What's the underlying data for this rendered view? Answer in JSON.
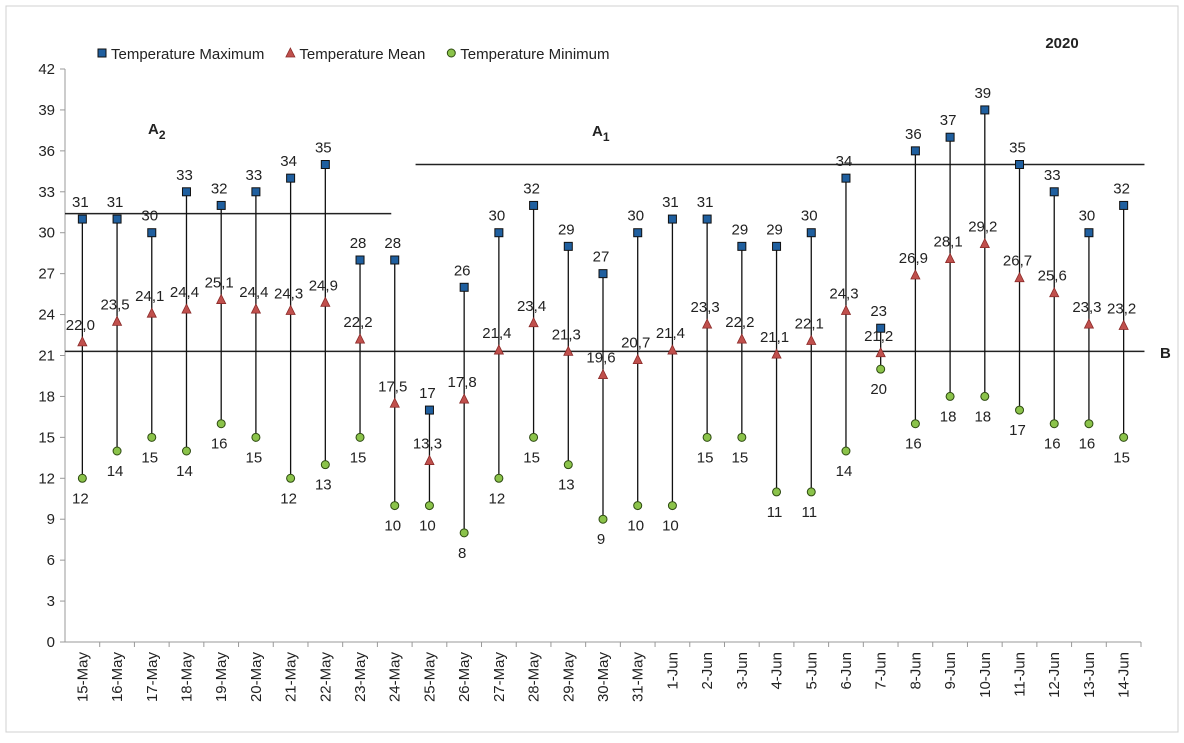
{
  "chart_data": {
    "type": "range-dot",
    "annotation_year": "2020",
    "categories": [
      "15-May",
      "16-May",
      "17-May",
      "18-May",
      "19-May",
      "20-May",
      "21-May",
      "22-May",
      "23-May",
      "24-May",
      "25-May",
      "26-May",
      "27-May",
      "28-May",
      "29-May",
      "30-May",
      "31-May",
      "1-Jun",
      "2-Jun",
      "3-Jun",
      "4-Jun",
      "5-Jun",
      "6-Jun",
      "7-Jun",
      "8-Jun",
      "9-Jun",
      "10-Jun",
      "11-Jun",
      "12-Jun",
      "13-Jun",
      "14-Jun"
    ],
    "series": [
      {
        "name": "Temperature Maximum",
        "color": "#1f5f9f",
        "marker": "square",
        "values": [
          31,
          31,
          30,
          33,
          32,
          33,
          34,
          35,
          28,
          28,
          17,
          26,
          30,
          32,
          29,
          27,
          30,
          31,
          31,
          29,
          29,
          30,
          34,
          23,
          36,
          37,
          39,
          35,
          33,
          30,
          32
        ]
      },
      {
        "name": "Temperature Mean",
        "color": "#c0504d",
        "marker": "triangle",
        "values": [
          22.0,
          23.5,
          24.1,
          24.4,
          25.1,
          24.4,
          24.3,
          24.9,
          22.2,
          17.5,
          13.3,
          17.8,
          21.4,
          23.4,
          21.3,
          19.6,
          20.7,
          21.4,
          23.3,
          22.2,
          21.1,
          22.1,
          24.3,
          21.2,
          26.9,
          28.1,
          29.2,
          26.7,
          25.6,
          23.3,
          23.2
        ],
        "value_labels": [
          "22,0",
          "23,5",
          "24,1",
          "24,4",
          "25,1",
          "24,4",
          "24,3",
          "24,9",
          "22,2",
          "17,5",
          "13,3",
          "17,8",
          "21,4",
          "23,4",
          "21,3",
          "19,6",
          "20,7",
          "21,4",
          "23,3",
          "22,2",
          "21,1",
          "22,1",
          "24,3",
          "21,2",
          "26,9",
          "28,1",
          "29,2",
          "26,7",
          "25,6",
          "23,3",
          "23,2"
        ]
      },
      {
        "name": "Temperature Minimum",
        "color": "#8bc34a",
        "marker": "circle",
        "values": [
          12,
          14,
          15,
          14,
          16,
          15,
          12,
          13,
          15,
          10,
          10,
          8,
          12,
          15,
          13,
          9,
          10,
          10,
          15,
          15,
          11,
          11,
          14,
          20,
          16,
          18,
          18,
          17,
          16,
          16,
          15
        ]
      }
    ],
    "reference_lines": [
      {
        "label": "A",
        "subscript": "2",
        "value": 31.4
      },
      {
        "label": "A",
        "subscript": "1",
        "value": 35.0
      },
      {
        "label": "B",
        "value": 21.3
      }
    ],
    "ylim": [
      0,
      42
    ],
    "yticks": [
      0,
      3,
      6,
      9,
      12,
      15,
      18,
      21,
      24,
      27,
      30,
      33,
      36,
      39,
      42
    ],
    "grid": false
  }
}
